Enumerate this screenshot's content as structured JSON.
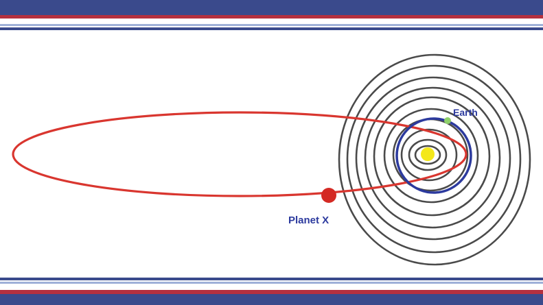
{
  "labels": {
    "earth": "Earth",
    "planet_x": "Planet X"
  },
  "colors": {
    "background": "#ffffff",
    "band_blue": "#3a4a8c",
    "band_red": "#b5303f",
    "band_light": "#9fb0d8",
    "planet_x_orbit": "#d9362f",
    "planet_x": "#d42a24",
    "earth_orbit": "#2c3a9e",
    "earth": "#8fd06a",
    "sun": "#f4e81a",
    "planet_orbits": "#4a4a4a",
    "label_text": "#2c3a9e"
  },
  "icons": {
    "sun": "sun-icon",
    "earth": "earth-icon",
    "planet_x": "planet-x-icon"
  }
}
